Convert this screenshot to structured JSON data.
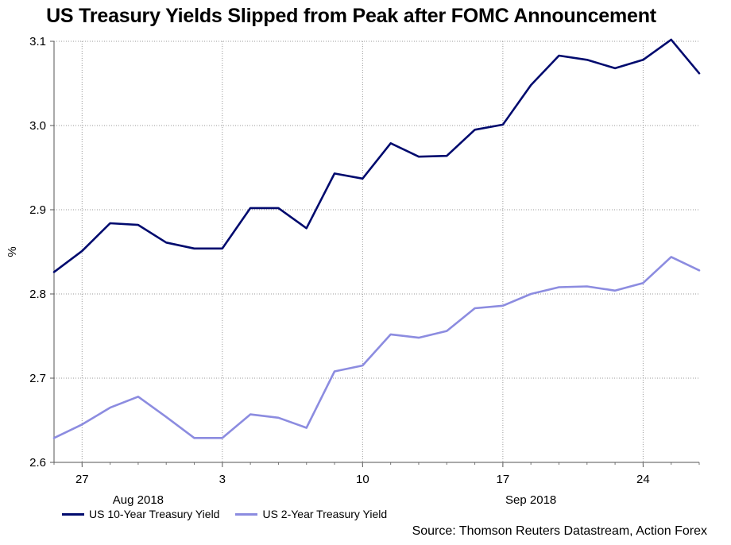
{
  "chart_data": {
    "type": "line",
    "title": "US Treasury Yields Slipped from Peak after FOMC Announcement",
    "xlabel": "",
    "ylabel": "%",
    "ylim": [
      2.6,
      3.1
    ],
    "yticks": [
      "2.6",
      "2.7",
      "2.8",
      "2.9",
      "3.0",
      "3.1"
    ],
    "x": [
      "2018-08-24",
      "2018-08-27",
      "2018-08-28",
      "2018-08-29",
      "2018-08-30",
      "2018-08-31",
      "2018-09-03",
      "2018-09-04",
      "2018-09-05",
      "2018-09-06",
      "2018-09-07",
      "2018-09-10",
      "2018-09-11",
      "2018-09-12",
      "2018-09-13",
      "2018-09-14",
      "2018-09-17",
      "2018-09-18",
      "2018-09-19",
      "2018-09-20",
      "2018-09-21",
      "2018-09-24",
      "2018-09-25",
      "2018-09-26"
    ],
    "xticks": [
      "27",
      "3",
      "10",
      "17",
      "24"
    ],
    "month_labels": [
      "Aug 2018",
      "Sep 2018"
    ],
    "series": [
      {
        "name": "US 10-Year Treasury Yield",
        "color": "#000a6e",
        "values": [
          2.826,
          2.851,
          2.884,
          2.882,
          2.861,
          2.854,
          2.854,
          2.902,
          2.902,
          2.878,
          2.943,
          2.937,
          2.979,
          2.963,
          2.964,
          2.995,
          3.001,
          3.048,
          3.083,
          3.078,
          3.068,
          3.078,
          3.102,
          3.062
        ]
      },
      {
        "name": "US 2-Year Treasury Yield",
        "color": "#8c8ce0",
        "values": [
          2.629,
          2.645,
          2.665,
          2.678,
          2.654,
          2.629,
          2.629,
          2.657,
          2.653,
          2.641,
          2.708,
          2.715,
          2.752,
          2.748,
          2.756,
          2.783,
          2.786,
          2.8,
          2.808,
          2.809,
          2.804,
          2.813,
          2.844,
          2.828
        ]
      }
    ],
    "grid": true,
    "legend": "bottom-left"
  },
  "source": "Source: Thomson Reuters Datastream, Action Forex"
}
